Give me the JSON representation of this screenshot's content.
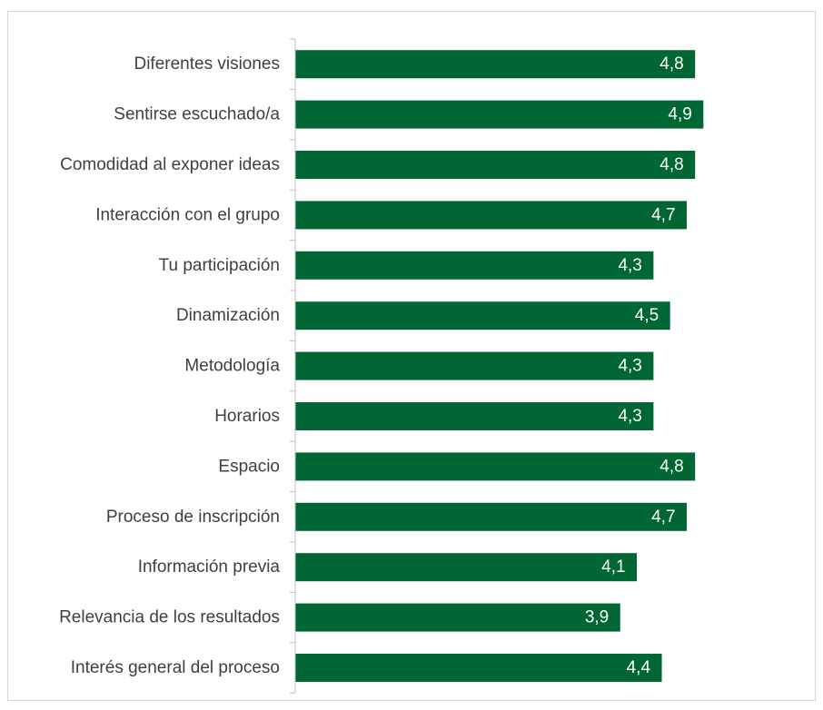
{
  "colors": {
    "bar": "#006633",
    "axis": "#bfbfbf",
    "frame": "#d9d9d9",
    "label": "#404040",
    "value_label": "#ffffff"
  },
  "chart_data": {
    "type": "bar",
    "orientation": "horizontal",
    "title": "",
    "xlabel": "",
    "ylabel": "",
    "categories": [
      "Diferentes visiones",
      "Sentirse escuchado/a",
      "Comodidad al exponer ideas",
      "Interacción con el grupo",
      "Tu participación",
      "Dinamización",
      "Metodología",
      "Horarios",
      "Espacio",
      "Proceso de inscripción",
      "Información previa",
      "Relevancia de los resultados",
      "Interés general del proceso"
    ],
    "values": [
      4.8,
      4.9,
      4.8,
      4.7,
      4.3,
      4.5,
      4.3,
      4.3,
      4.8,
      4.7,
      4.1,
      3.9,
      4.4
    ],
    "value_labels": [
      "4,8",
      "4,9",
      "4,8",
      "4,7",
      "4,3",
      "4,5",
      "4,3",
      "4,3",
      "4,8",
      "4,7",
      "4,1",
      "3,9",
      "4,4"
    ],
    "xlim": [
      0,
      5
    ],
    "grid": false,
    "legend": "none"
  }
}
